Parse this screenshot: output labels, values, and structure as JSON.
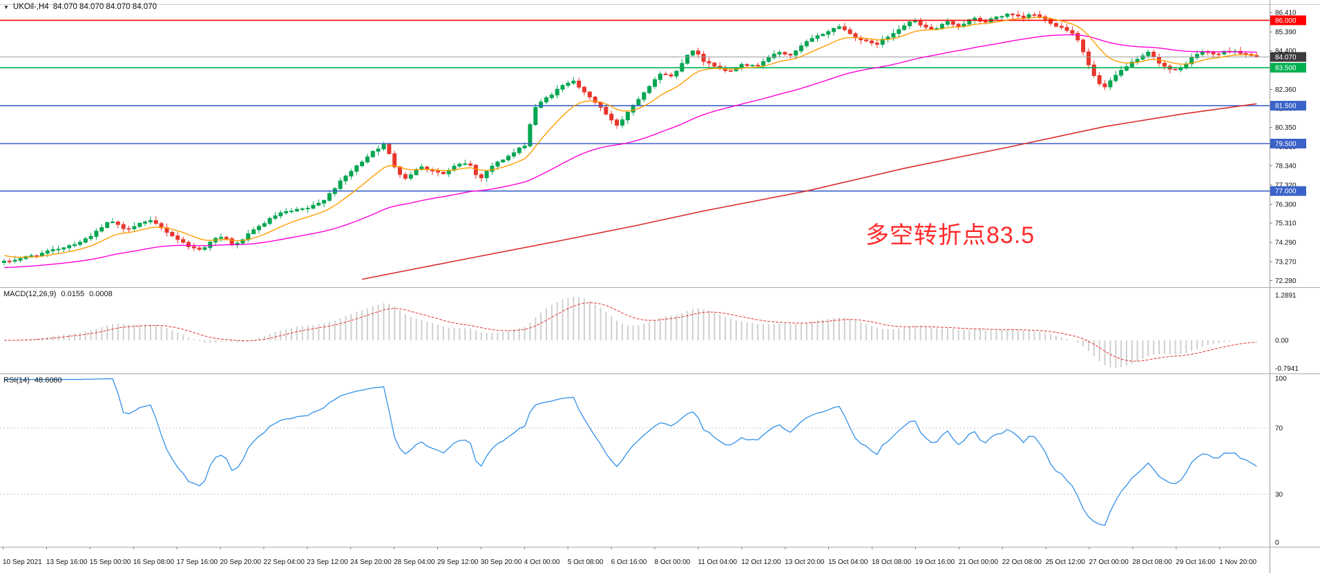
{
  "header": {
    "collapse_icon": "▼",
    "symbol": "UKOil-,H4",
    "ohlc": "84.070 84.070 84.070 84.070"
  },
  "annotation": {
    "text": "多空转折点83.5",
    "color": "#ff2a2a"
  },
  "macd_label": {
    "name": "MACD(12,26,9)",
    "value_main": "0.0155",
    "value_signal": "0.0008"
  },
  "rsi_label": {
    "name": "RSI(14)",
    "value": "48.6080"
  },
  "colors": {
    "up": "#00a551",
    "down": "#e8362d",
    "ma_fast": "#ff9c00",
    "ma_medium": "#ff00d8",
    "ma_slow": "#d92b2b",
    "macd_hist": "#cfcfcf",
    "macd_signal": "#e03232",
    "rsi_line": "#3090e8",
    "level_red": "#ff0000",
    "level_green": "#00b050",
    "level_blue": "#3a62c8",
    "current_price_line": "#9b9b9b",
    "current_price_badge": "#3c3c3c",
    "axis_text": "#111111",
    "separator": "#aaaaaa"
  },
  "chart_data": {
    "type": "candlestick",
    "title": "UKOil-,H4",
    "timeframe": "H4",
    "bars": 232,
    "last_close": 84.07,
    "y_range": [
      72.15,
      86.78
    ],
    "price_ticks": [
      [
        "86.410",
        86.41
      ],
      [
        "85.390",
        85.39
      ],
      [
        "84.400",
        84.4
      ],
      [
        "83.380",
        83.38
      ],
      [
        "82.360",
        82.36
      ],
      [
        "81.350",
        81.35
      ],
      [
        "80.350",
        80.35
      ],
      [
        "79.330",
        79.33
      ],
      [
        "78.340",
        78.34
      ],
      [
        "77.320",
        77.32
      ],
      [
        "76.300",
        76.3
      ],
      [
        "75.310",
        75.31
      ],
      [
        "74.290",
        74.29
      ],
      [
        "73.270",
        73.27
      ],
      [
        "72.280",
        72.28
      ]
    ],
    "levels": [
      {
        "label": "86.000",
        "price": 86.0,
        "badge_color": "#ff0000",
        "line_color": "#ff0000",
        "line_width": 1.6
      },
      {
        "label": "84.070",
        "price": 84.07,
        "badge_color": "#3c3c3c",
        "line_color": "#9b9b9b",
        "line_width": 1
      },
      {
        "label": "83.500",
        "price": 83.5,
        "badge_color": "#00b050",
        "line_color": "#00b050",
        "line_width": 1.6
      },
      {
        "label": "81.500",
        "price": 81.5,
        "badge_color": "#3a62c8",
        "line_color": "#3a62c8",
        "line_width": 1.6
      },
      {
        "label": "79.500",
        "price": 79.5,
        "badge_color": "#3a62c8",
        "line_color": "#3a62c8",
        "line_width": 1.6
      },
      {
        "label": "77.000",
        "price": 77.0,
        "badge_color": "#3a62c8",
        "line_color": "#3a62c8",
        "line_width": 1.6
      }
    ],
    "price_waypoints": [
      [
        0.0,
        73.25
      ],
      [
        0.013,
        73.45
      ],
      [
        0.03,
        73.7
      ],
      [
        0.048,
        74.05
      ],
      [
        0.062,
        74.35
      ],
      [
        0.075,
        74.9
      ],
      [
        0.085,
        75.45
      ],
      [
        0.096,
        74.95
      ],
      [
        0.108,
        75.3
      ],
      [
        0.118,
        75.4
      ],
      [
        0.13,
        74.85
      ],
      [
        0.141,
        74.35
      ],
      [
        0.15,
        74.0
      ],
      [
        0.158,
        73.9
      ],
      [
        0.166,
        74.45
      ],
      [
        0.176,
        74.55
      ],
      [
        0.184,
        74.1
      ],
      [
        0.193,
        74.6
      ],
      [
        0.206,
        75.25
      ],
      [
        0.219,
        75.8
      ],
      [
        0.231,
        75.95
      ],
      [
        0.243,
        76.1
      ],
      [
        0.253,
        76.4
      ],
      [
        0.263,
        77.1
      ],
      [
        0.273,
        77.8
      ],
      [
        0.284,
        78.45
      ],
      [
        0.294,
        79.1
      ],
      [
        0.304,
        79.45
      ],
      [
        0.313,
        78.1
      ],
      [
        0.321,
        77.65
      ],
      [
        0.331,
        78.3
      ],
      [
        0.341,
        78.1
      ],
      [
        0.351,
        77.9
      ],
      [
        0.361,
        78.35
      ],
      [
        0.371,
        78.5
      ],
      [
        0.379,
        77.6
      ],
      [
        0.389,
        78.3
      ],
      [
        0.399,
        78.7
      ],
      [
        0.409,
        79.1
      ],
      [
        0.416,
        79.45
      ],
      [
        0.423,
        81.35
      ],
      [
        0.433,
        81.9
      ],
      [
        0.444,
        82.45
      ],
      [
        0.454,
        82.9
      ],
      [
        0.464,
        82.1
      ],
      [
        0.474,
        81.6
      ],
      [
        0.484,
        80.75
      ],
      [
        0.49,
        80.45
      ],
      [
        0.498,
        81.2
      ],
      [
        0.508,
        82.0
      ],
      [
        0.518,
        82.8
      ],
      [
        0.526,
        83.25
      ],
      [
        0.534,
        83.0
      ],
      [
        0.544,
        84.1
      ],
      [
        0.55,
        84.45
      ],
      [
        0.558,
        83.9
      ],
      [
        0.568,
        83.6
      ],
      [
        0.578,
        83.25
      ],
      [
        0.589,
        83.75
      ],
      [
        0.599,
        83.55
      ],
      [
        0.609,
        84.0
      ],
      [
        0.619,
        84.3
      ],
      [
        0.629,
        84.15
      ],
      [
        0.639,
        84.8
      ],
      [
        0.649,
        85.15
      ],
      [
        0.659,
        85.45
      ],
      [
        0.667,
        85.7
      ],
      [
        0.675,
        85.3
      ],
      [
        0.685,
        84.95
      ],
      [
        0.695,
        84.7
      ],
      [
        0.705,
        85.1
      ],
      [
        0.715,
        85.6
      ],
      [
        0.725,
        86.0
      ],
      [
        0.734,
        85.65
      ],
      [
        0.743,
        85.5
      ],
      [
        0.753,
        85.9
      ],
      [
        0.763,
        85.7
      ],
      [
        0.773,
        86.1
      ],
      [
        0.783,
        85.9
      ],
      [
        0.793,
        86.2
      ],
      [
        0.803,
        86.3
      ],
      [
        0.813,
        86.1
      ],
      [
        0.821,
        86.35
      ],
      [
        0.831,
        86.05
      ],
      [
        0.841,
        85.7
      ],
      [
        0.851,
        85.45
      ],
      [
        0.858,
        84.95
      ],
      [
        0.866,
        83.6
      ],
      [
        0.873,
        82.7
      ],
      [
        0.879,
        82.45
      ],
      [
        0.887,
        83.05
      ],
      [
        0.896,
        83.6
      ],
      [
        0.905,
        83.9
      ],
      [
        0.913,
        84.3
      ],
      [
        0.921,
        83.85
      ],
      [
        0.929,
        83.45
      ],
      [
        0.937,
        83.3
      ],
      [
        0.946,
        83.9
      ],
      [
        0.955,
        84.35
      ],
      [
        0.968,
        84.2
      ],
      [
        0.98,
        84.45
      ],
      [
        0.99,
        84.2
      ],
      [
        1.0,
        84.07
      ]
    ],
    "moving_averages": {
      "fast": {
        "period": 12,
        "color": "#ff9c00"
      },
      "medium": {
        "period": 55,
        "color": "#ff00d8"
      },
      "slow": {
        "color": "#d92b2b",
        "waypoints": [
          [
            0.285,
            72.35
          ],
          [
            0.36,
            73.3
          ],
          [
            0.44,
            74.35
          ],
          [
            0.5,
            75.15
          ],
          [
            0.56,
            75.95
          ],
          [
            0.64,
            77.0
          ],
          [
            0.72,
            78.2
          ],
          [
            0.8,
            79.3
          ],
          [
            0.88,
            80.4
          ],
          [
            0.94,
            81.05
          ],
          [
            1.0,
            81.6
          ]
        ]
      }
    },
    "macd": {
      "fast": 12,
      "slow": 26,
      "signal": 9,
      "display_main": "0.0155",
      "display_signal": "0.0008",
      "scale_ticks": [
        [
          "1.2891",
          1.2891
        ],
        [
          "0.00",
          0
        ],
        [
          "-0.7941",
          -0.7941
        ]
      ]
    },
    "rsi": {
      "period": 14,
      "display": "48.6080",
      "scale_ticks": [
        [
          "100",
          100
        ],
        [
          "70",
          70
        ],
        [
          "30",
          30
        ],
        [
          "0",
          0
        ]
      ],
      "dotted_levels": [
        70,
        30
      ]
    },
    "time_labels": [
      "10 Sep 2021",
      "13 Sep 16:00",
      "15 Sep 00:00",
      "16 Sep 08:00",
      "17 Sep 16:00",
      "20 Sep 20:00",
      "22 Sep 04:00",
      "23 Sep 12:00",
      "24 Sep 20:00",
      "28 Sep 04:00",
      "29 Sep 12:00",
      "30 Sep 20:00",
      "4 Oct 00:00",
      "5 Oct 08:00",
      "6 Oct 16:00",
      "8 Oct 00:00",
      "11 Oct 04:00",
      "12 Oct 12:00",
      "13 Oct 20:00",
      "15 Oct 04:00",
      "18 Oct 08:00",
      "19 Oct 16:00",
      "21 Oct 00:00",
      "22 Oct 08:00",
      "25 Oct 12:00",
      "27 Oct 00:00",
      "28 Oct 08:00",
      "29 Oct 16:00",
      "1 Nov 20:00"
    ]
  }
}
